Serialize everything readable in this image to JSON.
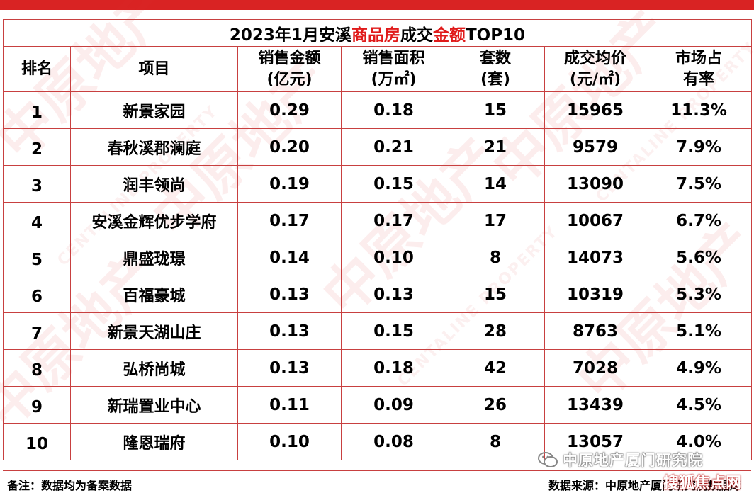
{
  "title": {
    "part1": "2023年1月安溪",
    "highlight1": "商品房",
    "part2": "成交",
    "highlight2": "金额",
    "part3": "TOP10"
  },
  "headers": [
    [
      "排名"
    ],
    [
      "项目"
    ],
    [
      "销售金额",
      "(亿元)"
    ],
    [
      "销售面积",
      "(万㎡)"
    ],
    [
      "套数",
      "(套)"
    ],
    [
      "成交均价",
      "(元/㎡)"
    ],
    [
      "市场占",
      "有率"
    ]
  ],
  "rows": [
    [
      "1",
      "新景家园",
      "0.29",
      "0.18",
      "15",
      "15965",
      "11.3%"
    ],
    [
      "2",
      "春秋溪郡澜庭",
      "0.20",
      "0.21",
      "21",
      "9579",
      "7.9%"
    ],
    [
      "3",
      "润丰领尚",
      "0.19",
      "0.15",
      "14",
      "13090",
      "7.5%"
    ],
    [
      "4",
      "安溪金辉优步学府",
      "0.17",
      "0.17",
      "17",
      "10067",
      "6.7%"
    ],
    [
      "5",
      "鼎盛珑璟",
      "0.14",
      "0.10",
      "8",
      "14073",
      "5.6%"
    ],
    [
      "6",
      "百福豪城",
      "0.13",
      "0.13",
      "15",
      "10319",
      "5.3%"
    ],
    [
      "7",
      "新景天湖山庄",
      "0.13",
      "0.15",
      "28",
      "8763",
      "5.1%"
    ],
    [
      "8",
      "弘桥尚城",
      "0.13",
      "0.18",
      "42",
      "7028",
      "4.9%"
    ],
    [
      "9",
      "新瑞置业中心",
      "0.11",
      "0.09",
      "26",
      "13439",
      "4.5%"
    ],
    [
      "10",
      "隆恩瑞府",
      "0.10",
      "0.08",
      "8",
      "13057",
      "4.0%"
    ]
  ],
  "footer": {
    "note": "备注：数据均为备案数据",
    "source": "数据来源：中原地产厦门研究院数据库"
  },
  "badge": {
    "text": "中原地产厦门研究院",
    "icon": "wechat-icon"
  },
  "site_mark": "搜狐焦点网",
  "watermark": {
    "cn": "中原地产",
    "en": "CENTALINE PROPERTY"
  },
  "colors": {
    "accent_red": "#e01a1a",
    "top_bar": "#d92323",
    "grid_line": "#c84040"
  }
}
